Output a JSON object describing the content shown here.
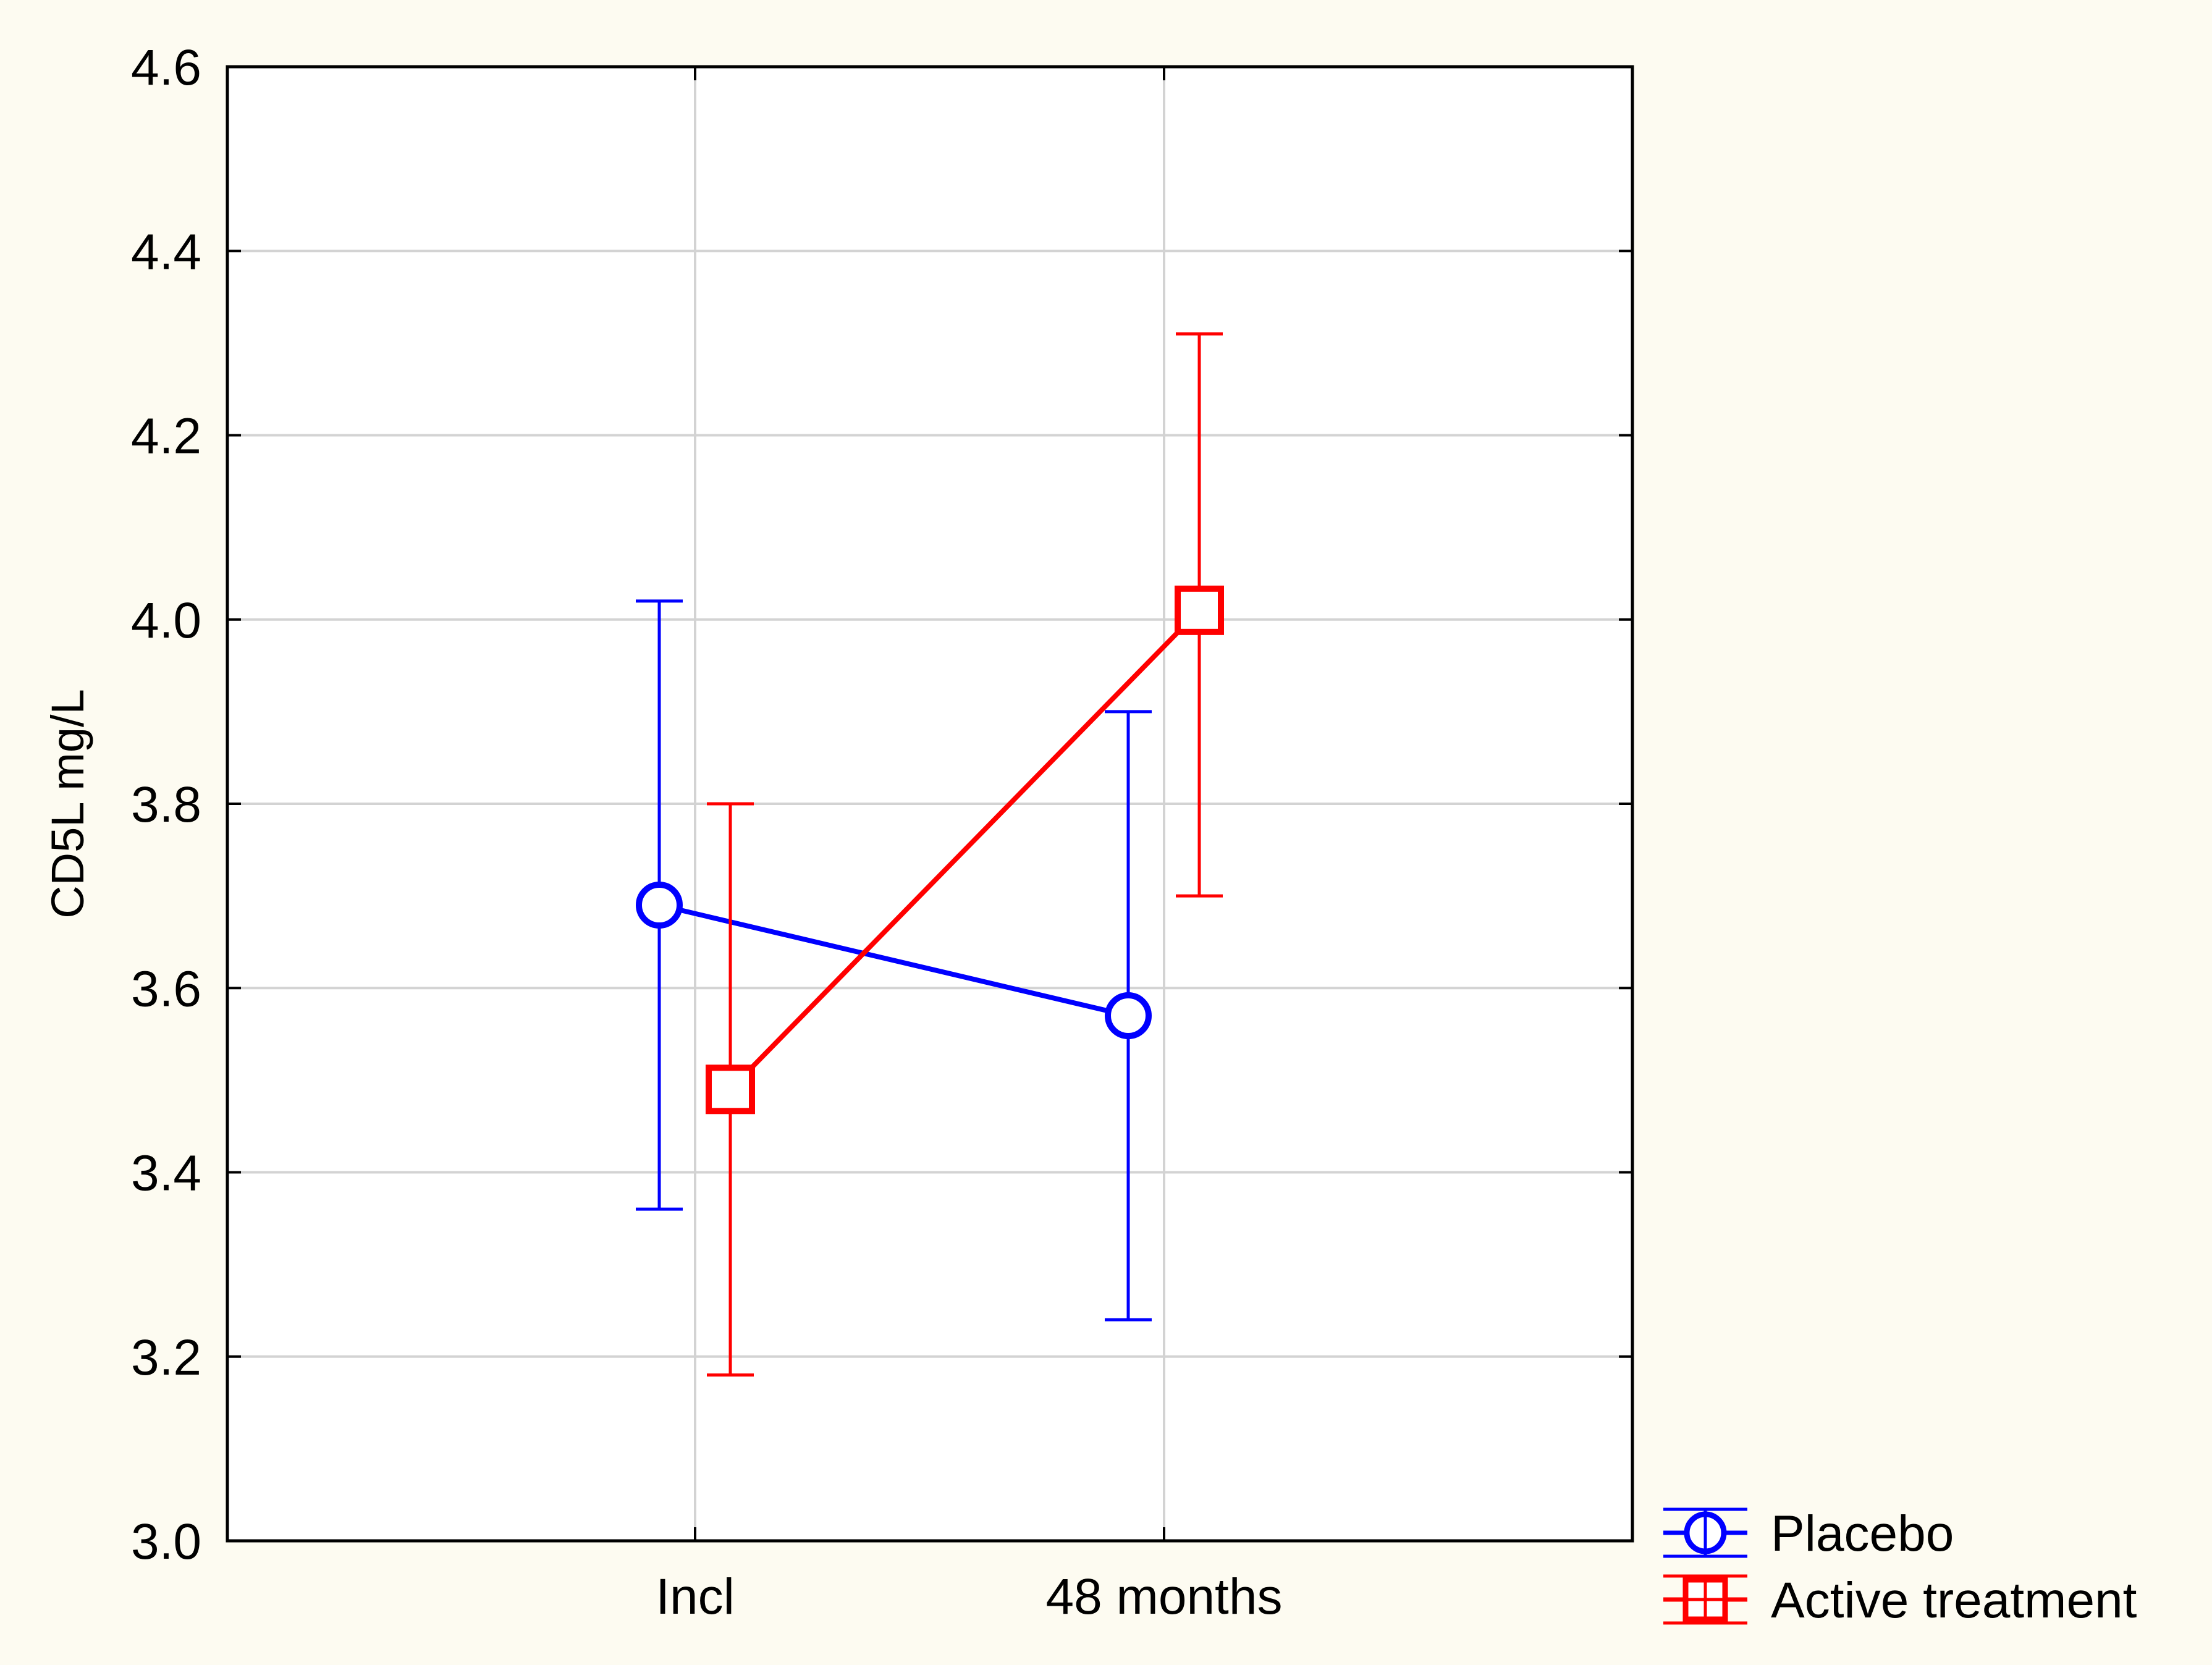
{
  "chart_data": {
    "type": "line",
    "title": "",
    "xlabel": "",
    "ylabel": "CD5L mg/L",
    "categories": [
      "Incl",
      "48 months"
    ],
    "ylim": [
      3.0,
      4.6
    ],
    "yticks": [
      "3.0",
      "3.2",
      "3.4",
      "3.6",
      "3.8",
      "4.0",
      "4.2",
      "4.4",
      "4.6"
    ],
    "grid": true,
    "legend_position": "bottom-right, outside plot",
    "series": [
      {
        "name": "Placebo",
        "color": "#0000ff",
        "marker": "circle",
        "values": [
          3.69,
          3.57
        ],
        "lower": [
          3.36,
          3.24
        ],
        "upper": [
          4.02,
          3.9
        ]
      },
      {
        "name": "Active treatment",
        "color": "#ff0000",
        "marker": "square",
        "values": [
          3.49,
          4.01
        ],
        "lower": [
          3.18,
          3.7
        ],
        "upper": [
          3.8,
          4.31
        ]
      }
    ]
  }
}
